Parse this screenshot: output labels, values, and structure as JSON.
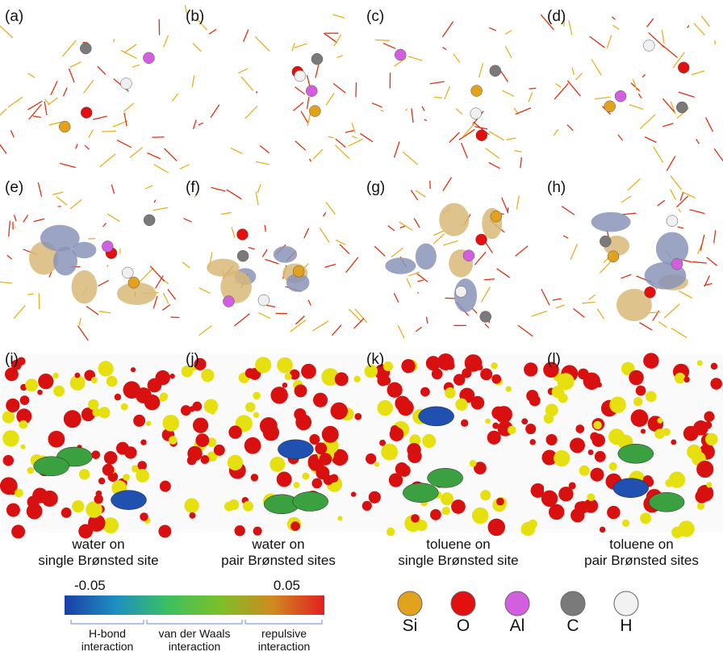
{
  "panels": [
    "(a)",
    "(b)",
    "(c)",
    "(d)",
    "(e)",
    "(f)",
    "(g)",
    "(h)",
    "(i)",
    "(j)",
    "(k)",
    "(l)"
  ],
  "captions": [
    [
      "water on",
      "single Brønsted site"
    ],
    [
      "water on",
      "pair Brønsted sites"
    ],
    [
      "toluene on",
      "single Brønsted site"
    ],
    [
      "toluene on",
      "pair Brønsted sites"
    ]
  ],
  "colorbar": {
    "lim": [
      -0.05,
      0.05
    ],
    "ticks": [
      -0.05,
      0.05
    ],
    "ranges": [
      [
        "H-bond",
        "interaction"
      ],
      [
        "van der Waals",
        "interaction"
      ],
      [
        "repulsive",
        "interaction"
      ]
    ]
  },
  "legend": [
    {
      "label": "Si",
      "color": "#e2a21e"
    },
    {
      "label": "O",
      "color": "#e31010"
    },
    {
      "label": "Al",
      "color": "#d35fe0"
    },
    {
      "label": "C",
      "color": "#7a7a7a"
    },
    {
      "label": "H",
      "color": "#f2f2f2"
    }
  ]
}
